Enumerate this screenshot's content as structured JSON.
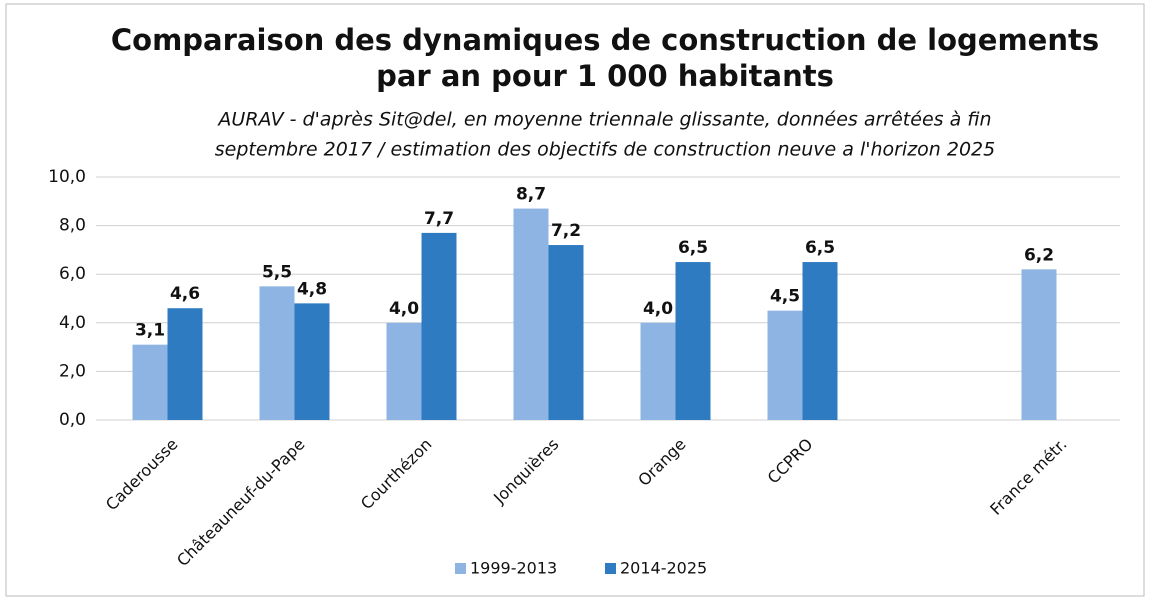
{
  "chart_data": {
    "type": "bar",
    "title": [
      "Comparaison des dynamiques de construction de logements",
      "par an pour 1 000 habitants"
    ],
    "subtitle": [
      "AURAV - d'après Sit@del, en moyenne triennale glissante, données arrêtées à fin",
      "septembre 2017 / estimation des objectifs de construction neuve a l'horizon 2025"
    ],
    "categories": [
      "Caderousse",
      "Châteauneuf-du-Pape",
      "Courthézon",
      "Jonquières",
      "Orange",
      "CCPRO",
      null,
      "France métr."
    ],
    "series": [
      {
        "name": "1999-2013",
        "color": "#8db4e2",
        "values": [
          3.1,
          5.5,
          4.0,
          8.7,
          4.0,
          4.5,
          null,
          6.2
        ],
        "value_labels": [
          "3,1",
          "5,5",
          "4,0",
          "8,7",
          "4,0",
          "4,5",
          null,
          "6,2"
        ]
      },
      {
        "name": "2014-2025",
        "color": "#2f7bc2",
        "values": [
          4.6,
          4.8,
          7.7,
          7.2,
          6.5,
          6.5,
          null,
          null
        ],
        "value_labels": [
          "4,6",
          "4,8",
          "7,7",
          "7,2",
          "6,5",
          "6,5",
          null,
          null
        ]
      }
    ],
    "ylim": [
      0,
      10
    ],
    "yticks": [
      {
        "value": 0,
        "label": "0,0"
      },
      {
        "value": 2,
        "label": "2,0"
      },
      {
        "value": 4,
        "label": "4,0"
      },
      {
        "value": 6,
        "label": "6,0"
      },
      {
        "value": 8,
        "label": "8,0"
      },
      {
        "value": 10,
        "label": "10,0"
      }
    ],
    "grid": true,
    "legend": "bottom"
  }
}
